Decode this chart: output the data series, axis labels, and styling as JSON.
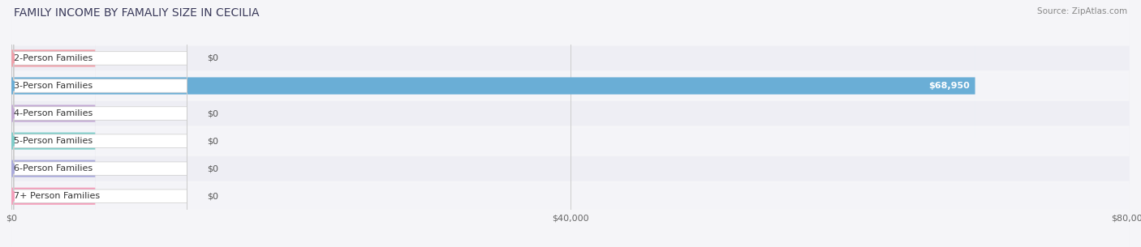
{
  "title": "FAMILY INCOME BY FAMALIY SIZE IN CECILIA",
  "source": "Source: ZipAtlas.com",
  "categories": [
    "2-Person Families",
    "3-Person Families",
    "4-Person Families",
    "5-Person Families",
    "6-Person Families",
    "7+ Person Families"
  ],
  "values": [
    0,
    68950,
    0,
    0,
    0,
    0
  ],
  "bar_colors": [
    "#f0a0aa",
    "#6aaed6",
    "#c4aad4",
    "#80ceca",
    "#aaaadc",
    "#f4a0bc"
  ],
  "row_bg_even": "#eeeef4",
  "row_bg_odd": "#f4f4f8",
  "xlim": [
    0,
    80000
  ],
  "xtick_values": [
    0,
    40000,
    80000
  ],
  "xtick_labels": [
    "$0",
    "$40,000",
    "$80,000"
  ],
  "value_labels": [
    "$0",
    "$68,950",
    "$0",
    "$0",
    "$0",
    "$0"
  ],
  "bar_height": 0.62,
  "background_color": "#f5f5f8",
  "title_fontsize": 10,
  "label_fontsize": 8,
  "tick_fontsize": 8,
  "source_fontsize": 7.5
}
